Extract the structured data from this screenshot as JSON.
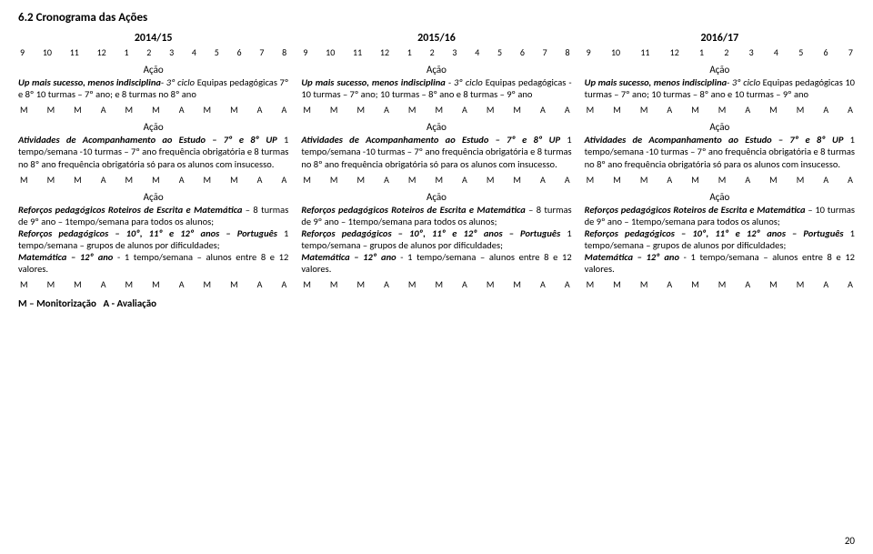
{
  "section_title": "6.2 Cronograma das Ações",
  "years": [
    "2014/15",
    "2015/16",
    "2016/17"
  ],
  "num_rows": [
    [
      "9",
      "10",
      "11",
      "12",
      "1",
      "2",
      "3",
      "4",
      "5",
      "6",
      "7",
      "8"
    ],
    [
      "9",
      "10",
      "11",
      "12",
      "1",
      "2",
      "3",
      "4",
      "5",
      "6",
      "7",
      "8"
    ],
    [
      "9",
      "10",
      "11",
      "12",
      "1",
      "2",
      "3",
      "4",
      "5",
      "6",
      "7"
    ]
  ],
  "acao_label": "Ação",
  "row1": [
    {
      "lead": "Up mais sucesso, menos indisciplina",
      "ital": "- 3º ciclo",
      "rest": " Equipas pedagógicas 7º e 8º 10 turmas – 7º ano; e 8 turmas no 8º ano"
    },
    {
      "lead": "Up mais sucesso, menos indisciplina",
      "ital": " -  3º ciclo",
      "rest": " Equipas pedagógicas  - 10 turmas – 7º ano; 10 turmas – 8º ano e 8 turmas – 9º ano"
    },
    {
      "lead": "Up mais sucesso, menos indisciplina",
      "ital": "- 3º ciclo",
      "rest": " Equipas pedagógicas 10 turmas – 7º ano; 10 turmas – 8º ano e 10 turmas – 9º ano"
    }
  ],
  "mm1": [
    [
      "M",
      "M",
      "M",
      "A",
      "M",
      "M",
      "A",
      "M",
      "M",
      "A",
      "A"
    ],
    [
      "M",
      "M",
      "M",
      "A",
      "M",
      "M",
      "A",
      "M",
      "M",
      "A",
      "A"
    ],
    [
      "M",
      "M",
      "M",
      "A",
      "M",
      "M",
      "A",
      "M",
      "M",
      "A",
      "A"
    ]
  ],
  "row2": [
    {
      "lead": "Atividades de Acompanhamento ao Estudo – 7º e 8º UP",
      "rest": " 1 tempo/semana -10 turmas – 7º ano frequência obrigatória e 8 turmas no 8º ano frequência obrigatória só para os alunos com insucesso."
    },
    {
      "lead": "Atividades de Acompanhamento ao Estudo – 7º e 8º UP",
      "rest": " 1 tempo/semana -10 turmas – 7º ano frequência obrigatória e 8 turmas no 8º ano frequência obrigatória só para os alunos com insucesso."
    },
    {
      "lead": "Atividades de Acompanhamento ao Estudo – 7º e 8º UP",
      "rest": " 1 tempo/semana -10 turmas – 7º ano frequência obrigatória e 8 turmas no 8º ano frequência obrigatória só para os alunos com insucesso."
    }
  ],
  "mm2": [
    [
      "M",
      "M",
      "M",
      "A",
      "M",
      "M",
      "A",
      "M",
      "M",
      "A",
      "A"
    ],
    [
      "M",
      "M",
      "M",
      "A",
      "M",
      "M",
      "A",
      "M",
      "M",
      "A",
      "A"
    ],
    [
      "M",
      "M",
      "M",
      "A",
      "M",
      "M",
      "A",
      "M",
      "M",
      "A",
      "A"
    ]
  ],
  "row3": [
    {
      "lead": "Reforços pedagógicos Roteiros de Escrita e Matemática",
      "line1": " – 8 turmas de 9º ano – 1tempo/semana para todos os alunos;",
      "lead2": "Reforços pedagógicos – 10º, 11º e 12º anos – Português",
      "line2": " 1 tempo/semana – grupos de alunos por dificuldades;",
      "lead3": "Matemática – 12º ano",
      "line3": " - 1 tempo/semana – alunos entre 8 e 12 valores."
    },
    {
      "lead": "Reforços pedagógicos Roteiros de Escrita e Matemática",
      "line1": " – 8 turmas de 9º ano – 1tempo/semana para todos os alunos;",
      "lead2": "Reforços pedagógicos – 10º, 11º e 12º anos – Português",
      "line2": " 1 tempo/semana – grupos de alunos por dificuldades;",
      "lead3": "Matemática – 12º ano",
      "line3": " - 1 tempo/semana – alunos entre 8 e 12 valores."
    },
    {
      "lead": "Reforços pedagógicos Roteiros de Escrita e Matemática",
      "line1": " – 10 turmas de 9º ano – 1tempo/semana para todos os alunos;",
      "lead2": "Reforços pedagógicos – 10º, 11º e 12º anos – Português",
      "line2": " 1 tempo/semana – grupos de alunos por dificuldades;",
      "lead3": "Matemática – 12º ano",
      "line3": " - 1 tempo/semana – alunos entre 8 e 12 valores."
    }
  ],
  "mm3": [
    [
      "M",
      "M",
      "M",
      "A",
      "M",
      "M",
      "A",
      "M",
      "M",
      "A",
      "A"
    ],
    [
      "M",
      "M",
      "M",
      "A",
      "M",
      "M",
      "A",
      "M",
      "M",
      "A",
      "A"
    ],
    [
      "M",
      "M",
      "M",
      "A",
      "M",
      "M",
      "A",
      "M",
      "M",
      "A",
      "A"
    ]
  ],
  "footer": {
    "m": "M – Monitorização",
    "a": "A - Avaliação"
  },
  "page_num": "20"
}
